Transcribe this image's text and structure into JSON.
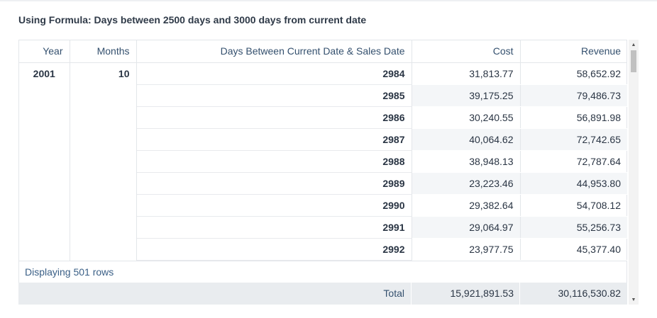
{
  "title": "Using Formula: Days between 2500 days and 3000 days from current date",
  "columns": {
    "year": "Year",
    "months": "Months",
    "days": "Days Between Current Date & Sales Date",
    "cost": "Cost",
    "revenue": "Revenue"
  },
  "group": {
    "year": "2001",
    "months": "10"
  },
  "rows": [
    {
      "days": "2984",
      "cost": "31,813.77",
      "revenue": "58,652.92"
    },
    {
      "days": "2985",
      "cost": "39,175.25",
      "revenue": "79,486.73"
    },
    {
      "days": "2986",
      "cost": "30,240.55",
      "revenue": "56,891.98"
    },
    {
      "days": "2987",
      "cost": "40,064.62",
      "revenue": "72,742.65"
    },
    {
      "days": "2988",
      "cost": "38,948.13",
      "revenue": "72,787.64"
    },
    {
      "days": "2989",
      "cost": "23,223.46",
      "revenue": "44,953.80"
    },
    {
      "days": "2990",
      "cost": "29,382.64",
      "revenue": "54,708.12"
    },
    {
      "days": "2991",
      "cost": "29,064.97",
      "revenue": "55,256.73"
    },
    {
      "days": "2992",
      "cost": "23,977.75",
      "revenue": "45,377.40"
    }
  ],
  "footer": {
    "rows_text": "Displaying 501 rows",
    "total_label": "Total",
    "total_cost": "15,921,891.53",
    "total_revenue": "30,116,530.82"
  },
  "scrollbar": {
    "up_icon": "▲",
    "down_icon": "▼"
  }
}
